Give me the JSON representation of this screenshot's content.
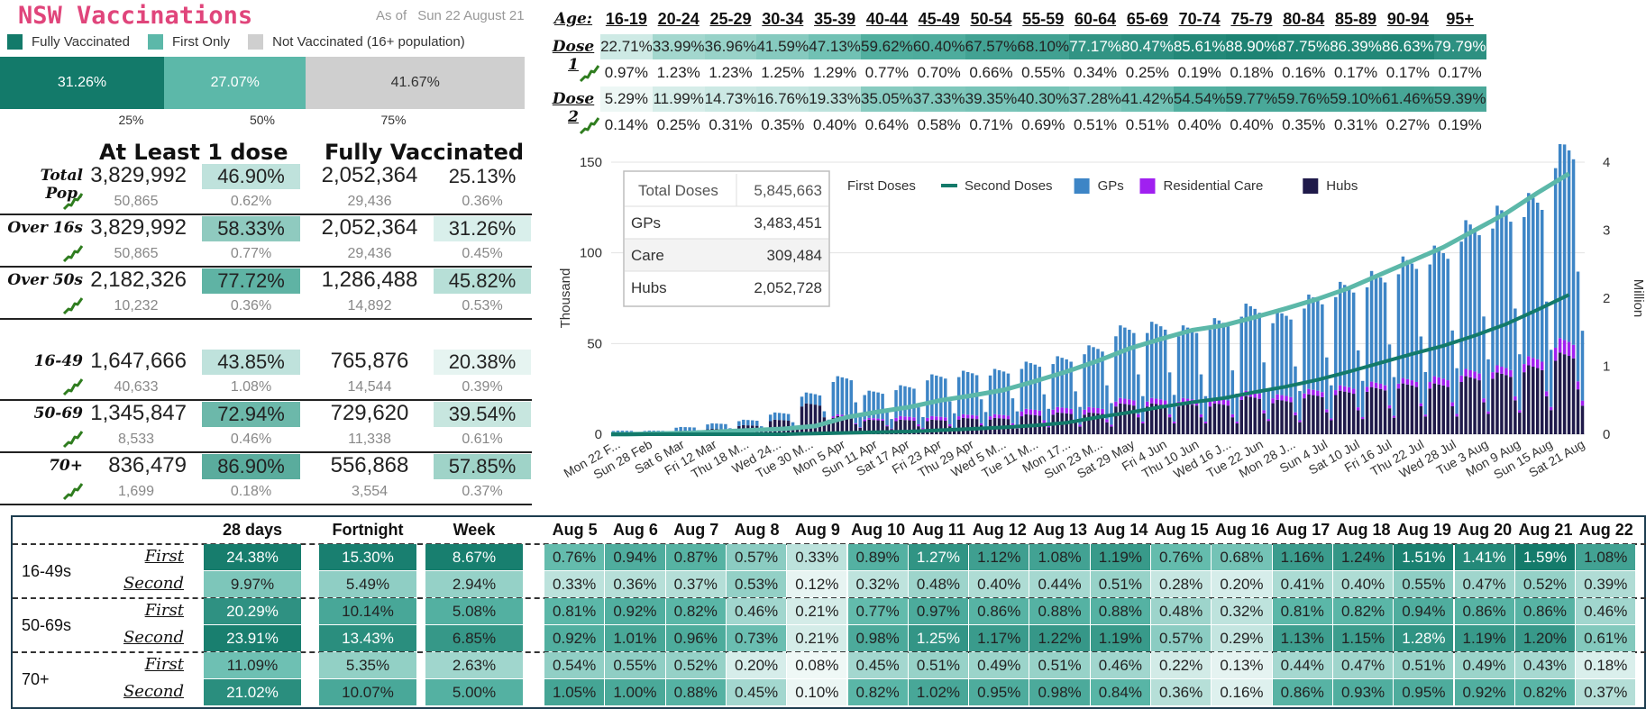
{
  "title": "NSW Vaccinations",
  "as_of_label": "As of",
  "as_of_date": "Sun 22 August 21",
  "legend": [
    {
      "label": "Fully Vaccinated",
      "color": "#137a6a"
    },
    {
      "label": "First Only",
      "color": "#5cb8a9"
    },
    {
      "label": "Not Vaccinated (16+ population)",
      "color": "#cfcfcf"
    }
  ],
  "stacked_bar": [
    {
      "label": "31.26%",
      "value": 31.26,
      "color": "#137a6a"
    },
    {
      "label": "27.07%",
      "value": 27.07,
      "color": "#5cb8a9"
    },
    {
      "label": "41.67%",
      "value": 41.67,
      "color": "#cfcfcf"
    }
  ],
  "stacked_ticks": [
    {
      "label": "25%",
      "value": 25
    },
    {
      "label": "50%",
      "value": 50
    },
    {
      "label": "75%",
      "value": 75
    }
  ],
  "left_table": {
    "head_1": "At Least 1 dose",
    "head_2": "Fully Vaccinated",
    "rows": [
      {
        "label": "Total Pop.",
        "dose1": "3,829,992",
        "dose1_pct": "46.90%",
        "full": "2,052,364",
        "full_pct": "25.13%",
        "d1_day": "50,865",
        "d1_day_pct": "0.62%",
        "full_day": "29,436",
        "full_day_pct": "0.36%"
      },
      {
        "label": "Over 16s",
        "dose1": "3,829,992",
        "dose1_pct": "58.33%",
        "full": "2,052,364",
        "full_pct": "31.26%",
        "d1_day": "50,865",
        "d1_day_pct": "0.77%",
        "full_day": "29,436",
        "full_day_pct": "0.45%"
      },
      {
        "label": "Over 50s",
        "dose1": "2,182,326",
        "dose1_pct": "77.72%",
        "full": "1,286,488",
        "full_pct": "45.82%",
        "d1_day": "10,232",
        "d1_day_pct": "0.36%",
        "full_day": "14,892",
        "full_day_pct": "0.53%"
      },
      {
        "label": "16-49",
        "dose1": "1,647,666",
        "dose1_pct": "43.85%",
        "full": "765,876",
        "full_pct": "20.38%",
        "d1_day": "40,633",
        "d1_day_pct": "1.08%",
        "full_day": "14,544",
        "full_day_pct": "0.39%"
      },
      {
        "label": "50-69",
        "dose1": "1,345,847",
        "dose1_pct": "72.94%",
        "full": "729,620",
        "full_pct": "39.54%",
        "d1_day": "8,533",
        "d1_day_pct": "0.46%",
        "full_day": "11,338",
        "full_day_pct": "0.61%"
      },
      {
        "label": "70+",
        "dose1": "836,479",
        "dose1_pct": "86.90%",
        "full": "556,868",
        "full_pct": "57.85%",
        "d1_day": "1,699",
        "d1_day_pct": "0.18%",
        "full_day": "3,554",
        "full_day_pct": "0.37%"
      }
    ]
  },
  "age_table": {
    "age_label": "Age:",
    "ages": [
      "16-19",
      "20-24",
      "25-29",
      "30-34",
      "35-39",
      "40-44",
      "45-49",
      "50-54",
      "55-59",
      "60-64",
      "65-69",
      "70-74",
      "75-79",
      "80-84",
      "85-89",
      "90-94",
      "95+"
    ],
    "dose1_label": "Dose 1",
    "dose1": [
      "22.71%",
      "33.99%",
      "36.96%",
      "41.59%",
      "47.13%",
      "59.62%",
      "60.40%",
      "67.57%",
      "68.10%",
      "77.17%",
      "80.47%",
      "85.61%",
      "88.90%",
      "87.75%",
      "86.39%",
      "86.63%",
      "79.79%"
    ],
    "dose1_daily": [
      "0.97%",
      "1.23%",
      "1.23%",
      "1.25%",
      "1.29%",
      "0.77%",
      "0.70%",
      "0.66%",
      "0.55%",
      "0.34%",
      "0.25%",
      "0.19%",
      "0.18%",
      "0.16%",
      "0.17%",
      "0.17%",
      "0.17%"
    ],
    "dose2_label": "Dose 2",
    "dose2": [
      "5.29%",
      "11.99%",
      "14.73%",
      "16.76%",
      "19.33%",
      "35.05%",
      "37.33%",
      "39.35%",
      "40.30%",
      "37.28%",
      "41.42%",
      "54.54%",
      "59.77%",
      "59.76%",
      "59.10%",
      "61.46%",
      "59.39%"
    ],
    "dose2_daily": [
      "0.14%",
      "0.25%",
      "0.31%",
      "0.35%",
      "0.40%",
      "0.64%",
      "0.58%",
      "0.71%",
      "0.69%",
      "0.51%",
      "0.51%",
      "0.40%",
      "0.40%",
      "0.35%",
      "0.31%",
      "0.27%",
      "0.19%"
    ]
  },
  "totals_box": {
    "rows": [
      {
        "label": "Total Doses",
        "value": "5,845,663"
      },
      {
        "label": "GPs",
        "value": "3,483,451"
      },
      {
        "label": "Care",
        "value": "309,484"
      },
      {
        "label": "Hubs",
        "value": "2,052,728"
      }
    ]
  },
  "chart_data": {
    "type": "bar",
    "ylabel": "Thousand",
    "y2label": "Million",
    "ylim": [
      0,
      150
    ],
    "y2lim": [
      0,
      4
    ],
    "yticks": [
      "0",
      "50",
      "100",
      "150"
    ],
    "y2ticks": [
      "0",
      "1",
      "2",
      "3",
      "4"
    ],
    "legend": [
      {
        "name": "First Doses",
        "color": "#5cb8a9",
        "kind": "line"
      },
      {
        "name": "Second Doses",
        "color": "#137a6a",
        "kind": "line"
      },
      {
        "name": "GPs",
        "color": "#3d85c6",
        "kind": "bar"
      },
      {
        "name": "Residential Care",
        "color": "#a020f0",
        "kind": "bar"
      },
      {
        "name": "Hubs",
        "color": "#1f1a4a",
        "kind": "bar"
      }
    ],
    "x_tick_labels": [
      "Mon 22 F...",
      "Sun 28 Feb",
      "Sat 6 Mar",
      "Fri 12 Mar",
      "Thu 18 M...",
      "Wed 24...",
      "Tue 30 M...",
      "Mon 5 Apr",
      "Sun 11 Apr",
      "Sat 17 Apr",
      "Fri 23 Apr",
      "Thu 29 Apr",
      "Wed 5 M...",
      "Tue 11 M...",
      "Mon 17...",
      "Sun 23 M...",
      "Sat 29 May",
      "Fri 4 Jun",
      "Thu 10 Jun",
      "Wed 16 J...",
      "Tue 22 Jun",
      "Mon 28 J...",
      "Sun 4 Jul",
      "Sat 10 Jul",
      "Fri 16 Jul",
      "Thu 22 Jul",
      "Wed 28 Jul",
      "Tue 3 Aug",
      "Mon 9 Aug",
      "Sun 15 Aug",
      "Sat 21 Aug"
    ],
    "series": [
      {
        "name": "GPs",
        "weekly_peak_thousand": [
          1,
          1,
          2,
          3,
          3,
          4,
          6,
          21,
          15,
          17,
          23,
          24,
          25,
          26,
          28,
          34,
          40,
          42,
          40,
          44,
          48,
          46,
          52,
          57,
          61,
          67,
          72,
          82,
          88,
          90,
          110
        ]
      },
      {
        "name": "Residential Care",
        "weekly_peak_thousand": [
          0,
          0,
          0,
          0,
          0,
          0,
          0,
          1,
          1,
          2,
          2,
          2,
          2,
          3,
          3,
          3,
          3,
          3,
          3,
          3,
          3,
          3,
          3,
          3,
          3,
          3,
          4,
          4,
          4,
          5,
          8
        ]
      },
      {
        "name": "Hubs",
        "weekly_peak_thousand": [
          1,
          1,
          2,
          3,
          5,
          8,
          17,
          10,
          8,
          8,
          8,
          9,
          9,
          11,
          12,
          12,
          17,
          17,
          17,
          17,
          21,
          19,
          22,
          24,
          26,
          28,
          28,
          32,
          34,
          38,
          45
        ]
      },
      {
        "name": "First Doses",
        "cumulative_million": [
          0.0,
          0.01,
          0.02,
          0.04,
          0.06,
          0.08,
          0.12,
          0.25,
          0.33,
          0.4,
          0.5,
          0.57,
          0.65,
          0.78,
          0.92,
          1.08,
          1.26,
          1.4,
          1.53,
          1.6,
          1.72,
          1.85,
          1.99,
          2.15,
          2.35,
          2.55,
          2.75,
          3.0,
          3.25,
          3.55,
          3.83
        ]
      },
      {
        "name": "Second Doses",
        "cumulative_million": [
          0.0,
          0.0,
          0.0,
          0.0,
          0.0,
          0.0,
          0.01,
          0.02,
          0.03,
          0.04,
          0.06,
          0.08,
          0.1,
          0.13,
          0.17,
          0.25,
          0.32,
          0.4,
          0.47,
          0.53,
          0.62,
          0.7,
          0.8,
          0.92,
          1.05,
          1.18,
          1.3,
          1.45,
          1.62,
          1.83,
          2.05
        ]
      }
    ]
  },
  "bottom_table": {
    "headers": [
      "28 days",
      "Fortnight",
      "Week",
      "Aug 5",
      "Aug 6",
      "Aug 7",
      "Aug 8",
      "Aug 9",
      "Aug 10",
      "Aug 11",
      "Aug 12",
      "Aug 13",
      "Aug 14",
      "Aug 15",
      "Aug 16",
      "Aug 17",
      "Aug 18",
      "Aug 19",
      "Aug 20",
      "Aug 21",
      "Aug 22"
    ],
    "groups": [
      {
        "name": "16-49s",
        "rows": [
          {
            "label": "First",
            "values": [
              "24.38%",
              "15.30%",
              "8.67%",
              "0.76%",
              "0.94%",
              "0.87%",
              "0.57%",
              "0.33%",
              "0.89%",
              "1.27%",
              "1.12%",
              "1.08%",
              "1.19%",
              "0.76%",
              "0.68%",
              "1.16%",
              "1.24%",
              "1.51%",
              "1.41%",
              "1.59%",
              "1.08%"
            ]
          },
          {
            "label": "Second",
            "values": [
              "9.97%",
              "5.49%",
              "2.94%",
              "0.33%",
              "0.36%",
              "0.37%",
              "0.53%",
              "0.12%",
              "0.32%",
              "0.48%",
              "0.40%",
              "0.44%",
              "0.51%",
              "0.28%",
              "0.20%",
              "0.41%",
              "0.40%",
              "0.55%",
              "0.47%",
              "0.52%",
              "0.39%"
            ]
          }
        ]
      },
      {
        "name": "50-69s",
        "rows": [
          {
            "label": "First",
            "values": [
              "20.29%",
              "10.14%",
              "5.08%",
              "0.81%",
              "0.92%",
              "0.82%",
              "0.46%",
              "0.21%",
              "0.77%",
              "0.97%",
              "0.86%",
              "0.88%",
              "0.88%",
              "0.48%",
              "0.32%",
              "0.81%",
              "0.82%",
              "0.94%",
              "0.86%",
              "0.86%",
              "0.46%"
            ]
          },
          {
            "label": "Second",
            "values": [
              "23.91%",
              "13.43%",
              "6.85%",
              "0.92%",
              "1.01%",
              "0.96%",
              "0.73%",
              "0.21%",
              "0.98%",
              "1.25%",
              "1.17%",
              "1.22%",
              "1.19%",
              "0.57%",
              "0.29%",
              "1.13%",
              "1.15%",
              "1.28%",
              "1.19%",
              "1.20%",
              "0.61%"
            ]
          }
        ]
      },
      {
        "name": "70+",
        "rows": [
          {
            "label": "First",
            "values": [
              "11.09%",
              "5.35%",
              "2.63%",
              "0.54%",
              "0.55%",
              "0.52%",
              "0.20%",
              "0.08%",
              "0.45%",
              "0.51%",
              "0.49%",
              "0.51%",
              "0.46%",
              "0.22%",
              "0.13%",
              "0.44%",
              "0.47%",
              "0.51%",
              "0.49%",
              "0.43%",
              "0.18%"
            ]
          },
          {
            "label": "Second",
            "values": [
              "21.02%",
              "10.07%",
              "5.00%",
              "1.05%",
              "1.00%",
              "0.88%",
              "0.45%",
              "0.10%",
              "0.82%",
              "1.02%",
              "0.95%",
              "0.98%",
              "0.84%",
              "0.36%",
              "0.16%",
              "0.86%",
              "0.93%",
              "0.95%",
              "0.92%",
              "0.82%",
              "0.37%"
            ]
          }
        ]
      }
    ]
  },
  "colors": {
    "dark": "#137a6a",
    "mid": "#5cb8a9",
    "light": "#d9efeb",
    "trend": "#2f7d1f",
    "border": "#1d3d4f"
  }
}
